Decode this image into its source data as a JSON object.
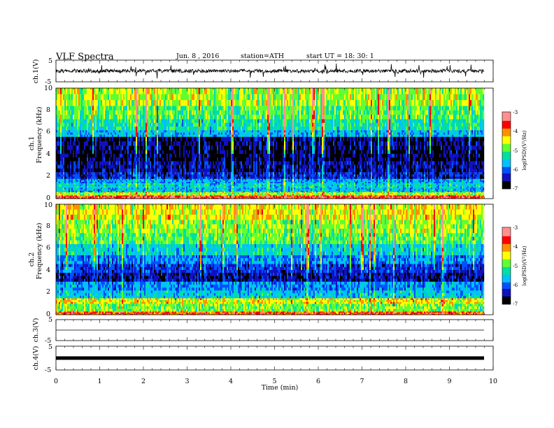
{
  "header": {
    "title": "VLF  Spectra",
    "date": "Jun. 8  , 2016",
    "station": "station=ATH",
    "start": "start  UT =   18: 30: 1"
  },
  "chart_data": [
    {
      "type": "line",
      "panel": "ch1-waveform",
      "ylabel": "ch.1(V)",
      "ylim": [
        -5,
        5
      ],
      "yticks": [
        "5",
        "-5"
      ],
      "xlim": [
        0,
        10
      ],
      "description_color": "#000000",
      "baseline_v": 0.0
    },
    {
      "type": "heatmap",
      "panel": "ch1-spectrogram",
      "ylabel_channel": "ch.1",
      "ylabel": "Frequency  (kHz)",
      "ylim": [
        0,
        10
      ],
      "yticks": [
        "0",
        "2",
        "4",
        "6",
        "8",
        "10"
      ],
      "xlim": [
        0,
        9.8
      ],
      "colorbar": {
        "label": "log(PSD)(V²/Hz)",
        "range": [
          -7,
          -3
        ],
        "ticks": [
          "-3",
          "-4",
          "-5",
          "-6",
          "-7"
        ]
      },
      "bands": [
        {
          "f0": 0.0,
          "f1": 0.3,
          "psd": -3.6
        },
        {
          "f0": 0.3,
          "f1": 0.6,
          "psd": -4.6
        },
        {
          "f0": 0.6,
          "f1": 1.0,
          "psd": -5.6
        },
        {
          "f0": 1.0,
          "f1": 1.4,
          "psd": -5.4
        },
        {
          "f0": 1.4,
          "f1": 1.8,
          "psd": -5.7
        },
        {
          "f0": 1.8,
          "f1": 2.4,
          "psd": -6.3
        },
        {
          "f0": 2.4,
          "f1": 3.4,
          "psd": -6.5
        },
        {
          "f0": 3.4,
          "f1": 4.4,
          "psd": -6.7
        },
        {
          "f0": 4.4,
          "f1": 5.6,
          "psd": -6.6
        },
        {
          "f0": 5.6,
          "f1": 6.2,
          "psd": -5.6
        },
        {
          "f0": 6.2,
          "f1": 7.2,
          "psd": -5.2
        },
        {
          "f0": 7.2,
          "f1": 8.4,
          "psd": -4.9
        },
        {
          "f0": 8.4,
          "f1": 10.0,
          "psd": -4.6
        }
      ]
    },
    {
      "type": "heatmap",
      "panel": "ch2-spectrogram",
      "ylabel_channel": "ch.2",
      "ylabel": "Frequency  (kHz)",
      "ylim": [
        0,
        10
      ],
      "yticks": [
        "0",
        "2",
        "4",
        "6",
        "8",
        "10"
      ],
      "xlim": [
        0,
        9.8
      ],
      "colorbar": {
        "label": "log(PSD)(V²/Hz)",
        "range": [
          -7,
          -3
        ],
        "ticks": [
          "-3",
          "-4",
          "-5",
          "-6",
          "-7"
        ]
      },
      "bands": [
        {
          "f0": 0.0,
          "f1": 0.3,
          "psd": -3.8
        },
        {
          "f0": 0.3,
          "f1": 1.0,
          "psd": -4.8
        },
        {
          "f0": 1.0,
          "f1": 1.5,
          "psd": -4.4
        },
        {
          "f0": 1.5,
          "f1": 2.2,
          "psd": -5.5
        },
        {
          "f0": 2.2,
          "f1": 3.0,
          "psd": -5.8
        },
        {
          "f0": 3.0,
          "f1": 3.8,
          "psd": -6.5
        },
        {
          "f0": 3.8,
          "f1": 4.6,
          "psd": -6.2
        },
        {
          "f0": 4.6,
          "f1": 5.4,
          "psd": -5.8
        },
        {
          "f0": 5.4,
          "f1": 6.4,
          "psd": -5.4
        },
        {
          "f0": 6.4,
          "f1": 7.4,
          "psd": -4.9
        },
        {
          "f0": 7.4,
          "f1": 8.6,
          "psd": -4.7
        },
        {
          "f0": 8.6,
          "f1": 10.0,
          "psd": -4.4
        }
      ]
    },
    {
      "type": "line",
      "panel": "ch3-waveform",
      "ylabel": "ch.3(V)",
      "ylim": [
        -5,
        5
      ],
      "yticks": [
        "5",
        "-5"
      ],
      "xlim": [
        0,
        10
      ],
      "baseline_v": 0.0
    },
    {
      "type": "line",
      "panel": "ch4-waveform",
      "ylabel": "ch.4(V)",
      "ylim": [
        -5,
        5
      ],
      "yticks": [
        "5",
        "-5"
      ],
      "xlim": [
        0,
        10
      ],
      "baseline_v": 0.0,
      "xlabel": "Time  (min)",
      "xticks": [
        "0",
        "1",
        "2",
        "3",
        "4",
        "5",
        "6",
        "7",
        "8",
        "9",
        "10"
      ]
    }
  ],
  "colors": {
    "axis": "#000000",
    "trace": "#000000",
    "colormap": [
      "#000000",
      "#1010c0",
      "#0050ff",
      "#00c0ff",
      "#00e0a0",
      "#60ff30",
      "#ffff00",
      "#ff9000",
      "#ff0000",
      "#ff9090"
    ]
  }
}
